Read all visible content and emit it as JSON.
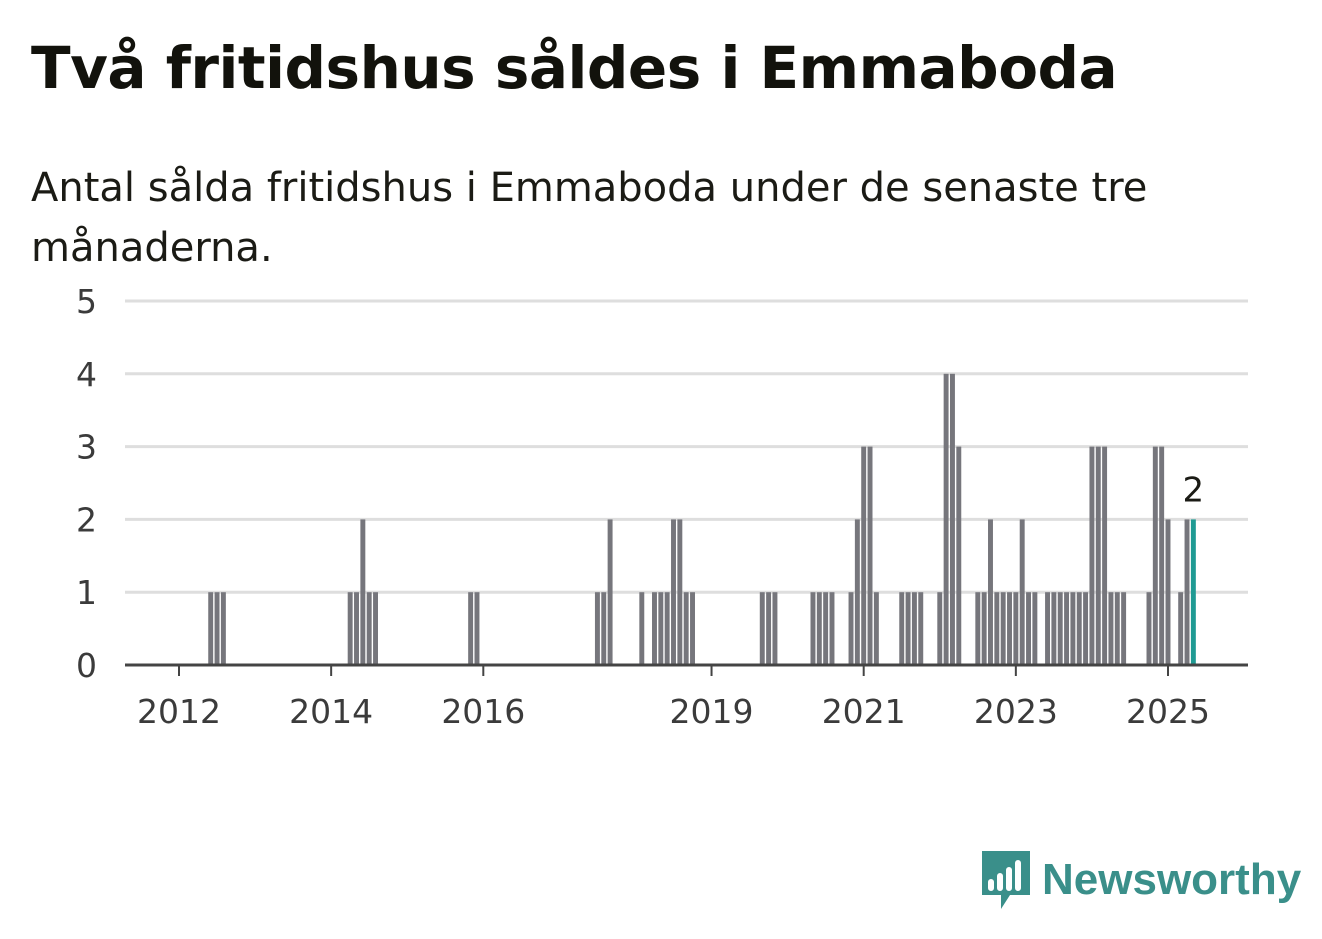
{
  "header": {
    "title": "Två fritidshus såldes i Emmaboda",
    "subtitle": "Antal sålda fritidshus i Emmaboda under de senaste tre månaderna."
  },
  "chart_data": {
    "type": "bar",
    "ylim": [
      0,
      5
    ],
    "y_ticks": [
      "0",
      "1",
      "2",
      "3",
      "4",
      "5"
    ],
    "x_ticks": [
      {
        "label": "2012",
        "date": "2012-03"
      },
      {
        "label": "2014",
        "date": "2014-03"
      },
      {
        "label": "2016",
        "date": "2016-03"
      },
      {
        "label": "2019",
        "date": "2019-03"
      },
      {
        "label": "2021",
        "date": "2021-03"
      },
      {
        "label": "2023",
        "date": "2023-03"
      },
      {
        "label": "2025",
        "date": "2025-03"
      }
    ],
    "grid": true,
    "legend": "none",
    "colors": {
      "bar": "#76767c",
      "highlight": "#1f9a93",
      "grid": "#dedede",
      "axis": "#444444"
    },
    "highlight_label": "2",
    "points": [
      {
        "date": "2012-08",
        "value": 1
      },
      {
        "date": "2012-09",
        "value": 1
      },
      {
        "date": "2012-10",
        "value": 1
      },
      {
        "date": "2014-06",
        "value": 1
      },
      {
        "date": "2014-07",
        "value": 1
      },
      {
        "date": "2014-08",
        "value": 2
      },
      {
        "date": "2014-09",
        "value": 1
      },
      {
        "date": "2014-10",
        "value": 1
      },
      {
        "date": "2016-01",
        "value": 1
      },
      {
        "date": "2016-02",
        "value": 1
      },
      {
        "date": "2017-09",
        "value": 1
      },
      {
        "date": "2017-10",
        "value": 1
      },
      {
        "date": "2017-11",
        "value": 2
      },
      {
        "date": "2018-04",
        "value": 1
      },
      {
        "date": "2018-06",
        "value": 1
      },
      {
        "date": "2018-07",
        "value": 1
      },
      {
        "date": "2018-08",
        "value": 1
      },
      {
        "date": "2018-09",
        "value": 2
      },
      {
        "date": "2018-10",
        "value": 2
      },
      {
        "date": "2018-11",
        "value": 1
      },
      {
        "date": "2018-12",
        "value": 1
      },
      {
        "date": "2019-11",
        "value": 1
      },
      {
        "date": "2019-12",
        "value": 1
      },
      {
        "date": "2020-01",
        "value": 1
      },
      {
        "date": "2020-07",
        "value": 1
      },
      {
        "date": "2020-08",
        "value": 1
      },
      {
        "date": "2020-09",
        "value": 1
      },
      {
        "date": "2020-10",
        "value": 1
      },
      {
        "date": "2021-01",
        "value": 1
      },
      {
        "date": "2021-02",
        "value": 2
      },
      {
        "date": "2021-03",
        "value": 3
      },
      {
        "date": "2021-04",
        "value": 3
      },
      {
        "date": "2021-05",
        "value": 1
      },
      {
        "date": "2021-09",
        "value": 1
      },
      {
        "date": "2021-10",
        "value": 1
      },
      {
        "date": "2021-11",
        "value": 1
      },
      {
        "date": "2021-12",
        "value": 1
      },
      {
        "date": "2022-03",
        "value": 1
      },
      {
        "date": "2022-04",
        "value": 4
      },
      {
        "date": "2022-05",
        "value": 4
      },
      {
        "date": "2022-06",
        "value": 3
      },
      {
        "date": "2022-09",
        "value": 1
      },
      {
        "date": "2022-10",
        "value": 1
      },
      {
        "date": "2022-11",
        "value": 2
      },
      {
        "date": "2022-12",
        "value": 1
      },
      {
        "date": "2023-01",
        "value": 1
      },
      {
        "date": "2023-02",
        "value": 1
      },
      {
        "date": "2023-03",
        "value": 1
      },
      {
        "date": "2023-04",
        "value": 2
      },
      {
        "date": "2023-05",
        "value": 1
      },
      {
        "date": "2023-06",
        "value": 1
      },
      {
        "date": "2023-08",
        "value": 1
      },
      {
        "date": "2023-09",
        "value": 1
      },
      {
        "date": "2023-10",
        "value": 1
      },
      {
        "date": "2023-11",
        "value": 1
      },
      {
        "date": "2023-12",
        "value": 1
      },
      {
        "date": "2024-01",
        "value": 1
      },
      {
        "date": "2024-02",
        "value": 1
      },
      {
        "date": "2024-03",
        "value": 3
      },
      {
        "date": "2024-04",
        "value": 3
      },
      {
        "date": "2024-05",
        "value": 3
      },
      {
        "date": "2024-06",
        "value": 1
      },
      {
        "date": "2024-07",
        "value": 1
      },
      {
        "date": "2024-08",
        "value": 1
      },
      {
        "date": "2024-12",
        "value": 1
      },
      {
        "date": "2025-01",
        "value": 3
      },
      {
        "date": "2025-02",
        "value": 3
      },
      {
        "date": "2025-03",
        "value": 2
      },
      {
        "date": "2025-05",
        "value": 1
      },
      {
        "date": "2025-06",
        "value": 2
      },
      {
        "date": "2025-07",
        "value": 2
      }
    ]
  },
  "brand": {
    "name": "Newsworthy",
    "icon": "bar-chart-speech-bubble-icon",
    "color": "#3a8f8a"
  }
}
